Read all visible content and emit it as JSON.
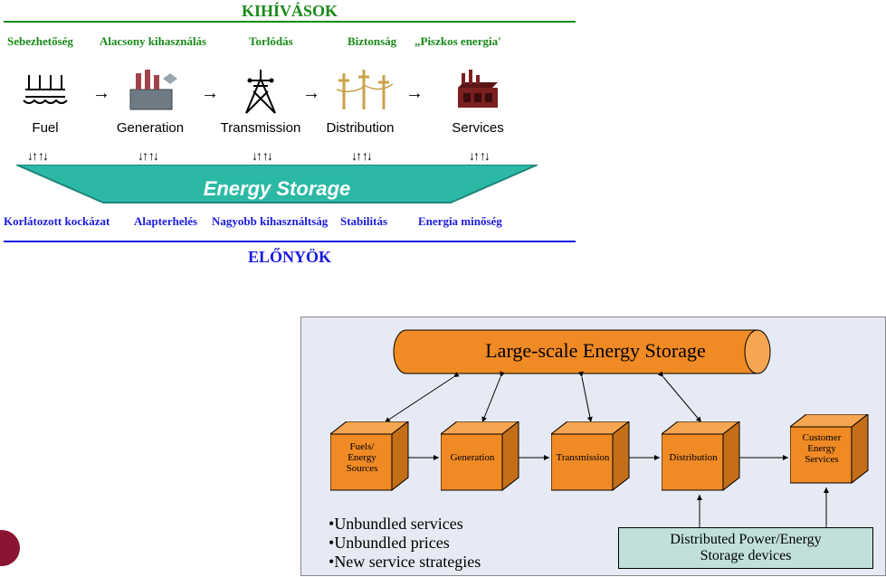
{
  "top": {
    "title": "KIHÍVÁSOK",
    "title_color": "#1a8a1a",
    "hr_top_color": "#1a8a1a",
    "challenges": [
      "Sebezhetőség",
      "Alacsony kihasználás",
      "Torlódás",
      "Biztonság",
      "„Piszkos energia'"
    ],
    "challenge_color": "#1a8a1a",
    "chain": [
      "Fuel",
      "Generation",
      "Transmission",
      "Distribution",
      "Services"
    ],
    "chain_label_color": "#000000",
    "flow_arrow_glyph": "→",
    "bidir_glyph": "↓↑   ↑↓",
    "storage_label": "Energy Storage",
    "storage_fill": "#2bb9a6",
    "storage_stroke": "#1e8679",
    "benefits": [
      "Korlátozott kockázat",
      "Alapterhelés",
      "Nagyobb kihasználtság",
      "Stabilitás",
      "Energia minőség"
    ],
    "benefit_color": "#1a1adf",
    "hr_bottom_color": "#1a1adf",
    "subtitle": "ELŐNYÖK",
    "subtitle_color": "#1a1adf",
    "icons": {
      "fuel_color": "#000000",
      "gen_body": "#6f7b84",
      "gen_stack": "#a1434a",
      "tx_color": "#000000",
      "dist_color": "#c9a24a",
      "svc_body": "#7b1f1f"
    }
  },
  "bottom": {
    "bg": "#e6eaf4",
    "cylinder_label": "Large-scale Energy Storage",
    "cylinder_fill": "#f08a24",
    "cylinder_stroke": "#000000",
    "cubes": [
      "Fuels/\nEnergy\nSources",
      "Generation",
      "Transmission",
      "Distribution",
      "Customer\nEnergy\nServices"
    ],
    "cube_fill": "#f08a24",
    "cube_top": "#f6a650",
    "cube_side": "#c46e18",
    "cube_stroke": "#000000",
    "dist_box_label": "Distributed Power/Energy\nStorage devices",
    "dist_box_fill": "#c1e0db",
    "bullets": [
      "Unbundled services",
      "Unbundled prices",
      "New service strategies"
    ],
    "bullet_glyph": "•",
    "arrow_color": "#000000"
  },
  "misc": {
    "red_dot_color": "#8a1432"
  }
}
